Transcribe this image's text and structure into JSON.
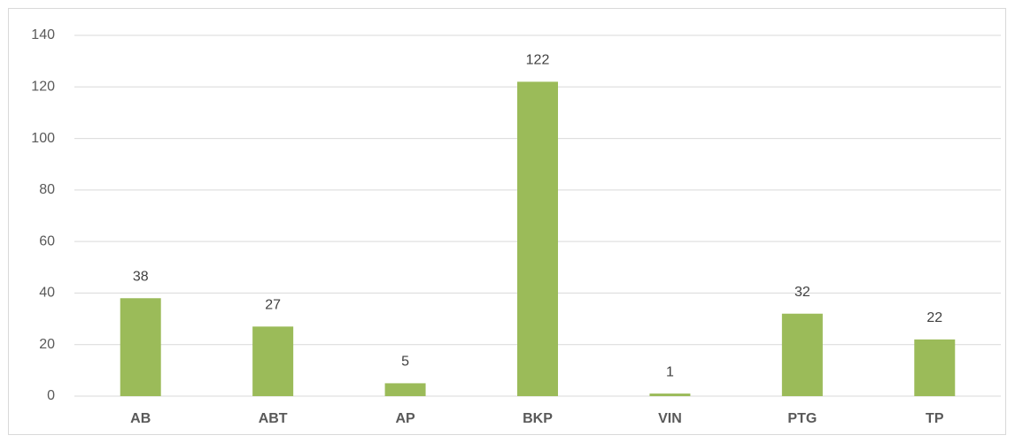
{
  "chart_data": {
    "type": "bar",
    "categories": [
      "AB",
      "ABT",
      "AP",
      "BKP",
      "VIN",
      "PTG",
      "TP"
    ],
    "values": [
      38,
      27,
      5,
      122,
      1,
      32,
      22
    ],
    "color": "#9bbb59",
    "ylim": [
      0,
      140
    ],
    "yticks": [
      0,
      20,
      40,
      60,
      80,
      100,
      120,
      140
    ],
    "grid": true,
    "data_labels": true
  }
}
